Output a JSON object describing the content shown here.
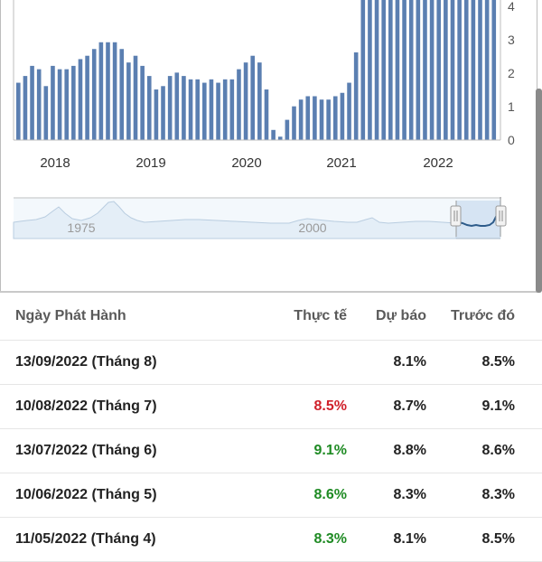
{
  "chart_data": {
    "type": "bar",
    "x_ticks": [
      "2018",
      "2019",
      "2020",
      "2021",
      "2022"
    ],
    "y_ticks": [
      "0",
      "1",
      "2",
      "3",
      "4"
    ],
    "ylim": [
      0,
      4.2
    ],
    "bar_color": "#5b7fb1",
    "values": [
      1.7,
      1.9,
      2.2,
      2.1,
      1.6,
      2.2,
      2.1,
      2.1,
      2.2,
      2.4,
      2.5,
      2.7,
      2.9,
      2.9,
      2.9,
      2.7,
      2.3,
      2.5,
      2.2,
      1.9,
      1.5,
      1.6,
      1.9,
      2.0,
      1.9,
      1.8,
      1.8,
      1.7,
      1.8,
      1.7,
      1.8,
      1.8,
      2.1,
      2.3,
      2.5,
      2.3,
      1.5,
      0.3,
      0.1,
      0.6,
      1.0,
      1.2,
      1.3,
      1.3,
      1.2,
      1.2,
      1.3,
      1.4,
      1.7,
      2.6,
      4.2,
      4.2,
      4.2,
      4.2,
      4.2,
      4.2,
      4.2,
      4.2,
      4.2,
      4.2,
      4.2,
      4.2,
      4.2,
      4.2,
      4.2,
      4.2,
      4.2,
      4.2,
      4.2,
      4.2,
      4.2
    ]
  },
  "navigator": {
    "labels": [
      "1975",
      "2000"
    ]
  },
  "table": {
    "headers": {
      "date": "Ngày Phát Hành",
      "actual": "Thực tế",
      "forecast": "Dự báo",
      "previous": "Trước đó"
    },
    "rows": [
      {
        "date": "13/09/2022 (Tháng 8)",
        "actual": "",
        "actual_trend": "",
        "forecast": "8.1%",
        "previous": "8.5%"
      },
      {
        "date": "10/08/2022 (Tháng 7)",
        "actual": "8.5%",
        "actual_trend": "down",
        "forecast": "8.7%",
        "previous": "9.1%"
      },
      {
        "date": "13/07/2022 (Tháng 6)",
        "actual": "9.1%",
        "actual_trend": "up",
        "forecast": "8.8%",
        "previous": "8.6%"
      },
      {
        "date": "10/06/2022 (Tháng 5)",
        "actual": "8.6%",
        "actual_trend": "up",
        "forecast": "8.3%",
        "previous": "8.3%"
      },
      {
        "date": "11/05/2022 (Tháng 4)",
        "actual": "8.3%",
        "actual_trend": "up",
        "forecast": "8.1%",
        "previous": "8.5%"
      }
    ]
  }
}
